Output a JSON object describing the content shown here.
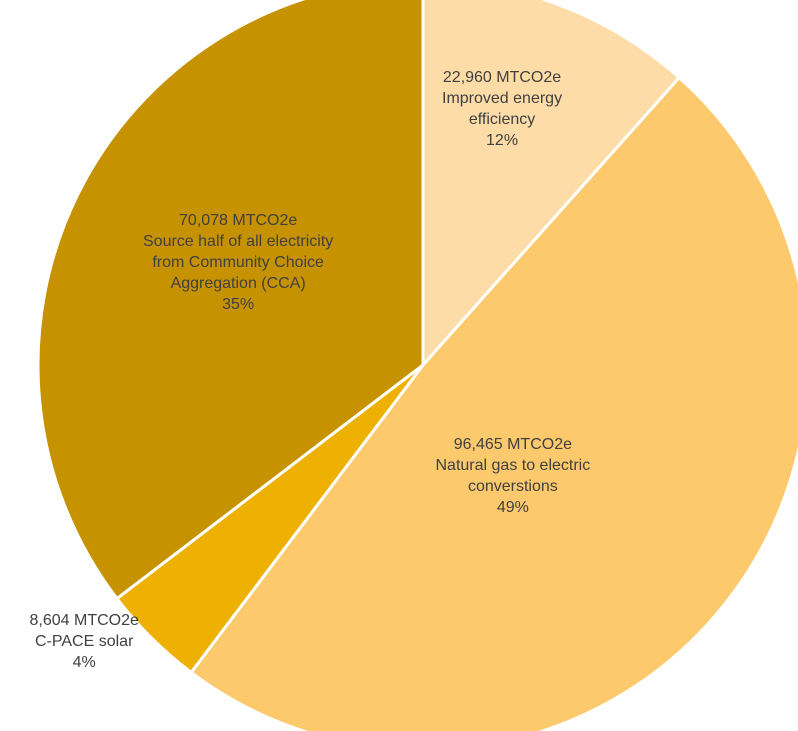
{
  "chart_data": {
    "type": "pie",
    "title": "",
    "unit": "MTCO2e",
    "slices": [
      {
        "value_text": "22,960 MTCO2e",
        "label": "Improved energy efficiency",
        "label_lines": [
          "Improved energy",
          "efficiency"
        ],
        "value": 22960,
        "percent_text": "12%",
        "percent": 12,
        "color": "#FDDCA8"
      },
      {
        "value_text": "96,465 MTCO2e",
        "label": "Natural gas to electric converstions",
        "label_lines": [
          "Natural gas to electric",
          "converstions"
        ],
        "value": 96465,
        "percent_text": "49%",
        "percent": 49,
        "color": "#FCC96D"
      },
      {
        "value_text": "8,604 MTCO2e",
        "label": "C-PACE solar",
        "label_lines": [
          "C-PACE solar"
        ],
        "value": 8604,
        "percent_text": "4%",
        "percent": 4,
        "color": "#EEB102"
      },
      {
        "value_text": "70,078 MTCO2e",
        "label": "Source half of all electricity from Community Choice Aggregation (CCA)",
        "label_lines": [
          "Source half of all electricity",
          "from Community Choice",
          "Aggregation (CCA)"
        ],
        "value": 70078,
        "percent_text": "35%",
        "percent": 35,
        "color": "#C69200"
      }
    ],
    "start_angle": "12 o'clock",
    "direction": "clockwise",
    "slice_border_color": "#FFFFFF"
  }
}
